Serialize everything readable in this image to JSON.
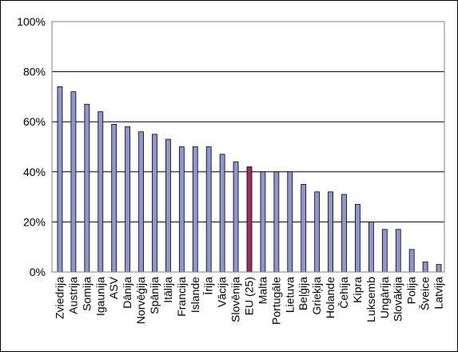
{
  "chart_data": {
    "type": "bar",
    "categories": [
      "Zviedrija",
      "Austrija",
      "Somija",
      "Igaunija",
      "ASV",
      "Dānija",
      "Norvēģija",
      "Spānija",
      "Itālija",
      "Francija",
      "Islande",
      "Īrija",
      "Vācija",
      "Slovēnija",
      "EU (25)",
      "Malta",
      "Portugāle",
      "Lietuva",
      "Beļģija",
      "Grieķija",
      "Holande",
      "Čehija",
      "Kipra",
      "Luksemb",
      "Ungārija",
      "Slovākija",
      "Polija",
      "Šveice",
      "Latvija"
    ],
    "values": [
      74,
      72,
      67,
      64,
      59,
      58,
      56,
      55,
      53,
      50,
      50,
      50,
      47,
      44,
      42,
      40,
      40,
      40,
      35,
      32,
      32,
      31,
      27,
      20,
      17,
      17,
      9,
      4,
      3
    ],
    "ylim": [
      0,
      100
    ],
    "y_ticks": [
      "0%",
      "20%",
      "40%",
      "60%",
      "80%",
      "100%"
    ],
    "y_tick_values": [
      0,
      20,
      40,
      60,
      80,
      100
    ],
    "grid": true,
    "bar_color": "#8f96cc",
    "highlight_index": 14,
    "highlight_color": "#9b2f63",
    "gridline_color": "#000000"
  }
}
